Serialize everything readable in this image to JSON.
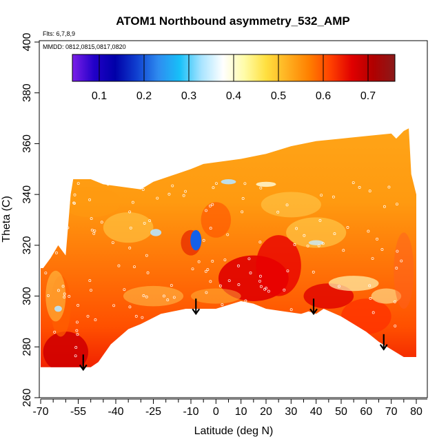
{
  "chart_data": {
    "type": "heatmap",
    "title": "ATOM1 Northbound asymmetry_532_AMP",
    "flights_label": "Flts: 6,7,8,9",
    "dates_label": "MMDD: 0812,0815,0817,0820",
    "xlabel": "Latitude (deg N)",
    "ylabel": "Theta (C)",
    "xlim": [
      -70,
      80
    ],
    "ylim": [
      260,
      400
    ],
    "x_tick_labels": [
      "-70",
      "-55",
      "-40",
      "-25",
      "-10",
      "0",
      "10",
      "20",
      "30",
      "40",
      "50",
      "60",
      "70",
      "80"
    ],
    "x_tick_values": [
      -70,
      -55,
      -40,
      -25,
      -10,
      0,
      10,
      20,
      30,
      40,
      50,
      60,
      70,
      80
    ],
    "x_minor_ticks": [
      -65,
      -60,
      -50,
      -45,
      -35,
      -30,
      -20,
      -15,
      -5,
      5,
      15,
      25,
      35,
      45,
      55,
      65,
      75
    ],
    "y_tick_labels": [
      "260",
      "280",
      "300",
      "320",
      "340",
      "360",
      "380",
      "400"
    ],
    "y_tick_values": [
      260,
      280,
      300,
      320,
      340,
      360,
      380,
      400
    ],
    "colorbar": {
      "range": [
        0.04,
        0.76
      ],
      "tick_values": [
        0.1,
        0.2,
        0.3,
        0.4,
        0.5,
        0.6,
        0.7
      ],
      "tick_labels": [
        "0.1",
        "0.2",
        "0.3",
        "0.4",
        "0.5",
        "0.6",
        "0.7"
      ],
      "colors": [
        "#7B1FE8",
        "#2200C8",
        "#0000A8",
        "#1040D0",
        "#2E8CF0",
        "#18C0F8",
        "#A8E4FF",
        "#FFFFFF",
        "#FFFCA8",
        "#FFE040",
        "#FFB020",
        "#FF8000",
        "#FF4000",
        "#E00000",
        "#B00000",
        "#8A1A1A"
      ]
    },
    "lower_boundary": {
      "lat": [
        -70,
        -50,
        -47,
        -42,
        -35,
        -30,
        -22,
        -12,
        -5,
        0,
        10,
        15,
        20,
        27,
        34,
        37,
        40,
        43,
        50,
        60,
        65,
        70,
        75,
        80
      ],
      "theta": [
        272,
        272,
        274,
        281,
        287,
        289,
        293,
        295,
        295,
        295,
        298,
        297,
        295,
        294,
        293,
        294,
        293,
        295,
        292,
        286,
        282,
        279,
        276,
        276
      ]
    },
    "upper_boundary": {
      "lat": [
        -70,
        -69,
        -66,
        -63,
        -60,
        -58,
        -57,
        -52,
        -50,
        -45,
        -30,
        -25,
        -10,
        -5,
        10,
        20,
        30,
        40,
        50,
        60,
        70,
        72,
        75,
        77,
        78,
        80
      ],
      "theta": [
        311,
        311,
        315,
        320,
        316,
        340,
        346,
        346,
        346,
        344,
        342,
        345,
        350,
        352,
        354,
        356,
        359,
        361,
        362,
        363,
        364,
        362,
        365,
        366,
        348,
        340
      ]
    },
    "flight_arrows_lat": [
      -53,
      -8,
      39,
      67
    ],
    "flight_arrows_theta": [
      277,
      299,
      299,
      285
    ]
  }
}
